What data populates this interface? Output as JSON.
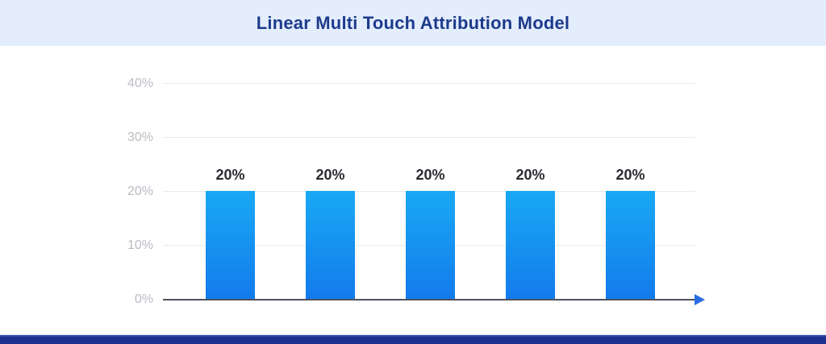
{
  "header": {
    "title": "Linear Multi Touch Attribution Model"
  },
  "chart_data": {
    "type": "bar",
    "title": "Linear Multi Touch Attribution Model",
    "values": [
      20,
      20,
      20,
      20,
      20
    ],
    "data_labels": [
      "20%",
      "20%",
      "20%",
      "20%",
      "20%"
    ],
    "xlabel": "",
    "ylabel": "",
    "ylim": [
      0,
      42
    ],
    "yticks": [
      {
        "label": "0%",
        "value": 0
      },
      {
        "label": "10%",
        "value": 10
      },
      {
        "label": "20%",
        "value": 20
      },
      {
        "label": "30%",
        "value": 30
      },
      {
        "label": "40%",
        "value": 40
      }
    ],
    "grid": "horizontal",
    "legend": "none",
    "x_axis_arrow": true,
    "colors": {
      "bar_gradient_top": "#19a9f4",
      "bar_gradient_bottom": "#137bec",
      "axis_line": "#50545e",
      "arrow": "#2b6de0",
      "gridline": "#e9eaec",
      "tick_label": "#b9bcc2",
      "data_label": "#2b2b31",
      "title": "#1d3b8b",
      "header_bg": "#e4edfc",
      "footer_bar": "#1d2f8f"
    }
  }
}
